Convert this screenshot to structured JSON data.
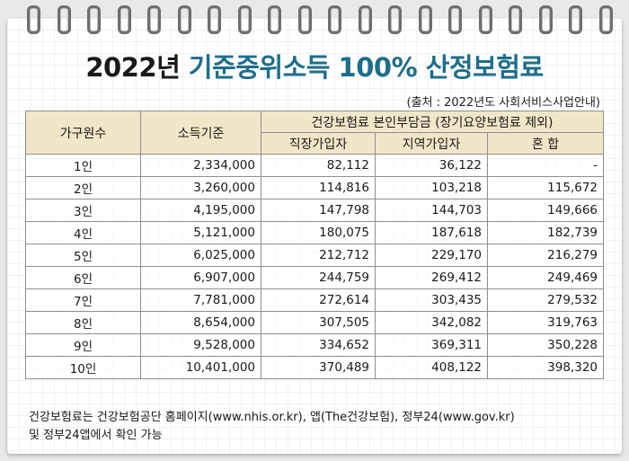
{
  "title": {
    "main": "2022년 ",
    "accent": "기준중위소득 100% 산정보험료"
  },
  "source": "(출처 : 2022년도 사회서비스사업안내)",
  "table": {
    "headers": {
      "household": "가구원수",
      "income": "소득기준",
      "premium_group": "건강보험료 본인부담금 (장기요양보험료 제외)",
      "workplace": "직장가입자",
      "regional": "지역가입자",
      "mixed": "혼 합"
    },
    "rows": [
      [
        "1인",
        "2,334,000",
        "82,112",
        "36,122",
        "-"
      ],
      [
        "2인",
        "3,260,000",
        "114,816",
        "103,218",
        "115,672"
      ],
      [
        "3인",
        "4,195,000",
        "147,798",
        "144,703",
        "149,666"
      ],
      [
        "4인",
        "5,121,000",
        "180,075",
        "187,618",
        "182,739"
      ],
      [
        "5인",
        "6,025,000",
        "212,712",
        "229,170",
        "216,279"
      ],
      [
        "6인",
        "6,907,000",
        "244,759",
        "269,412",
        "249,469"
      ],
      [
        "7인",
        "7,781,000",
        "272,614",
        "303,435",
        "279,532"
      ],
      [
        "8인",
        "8,654,000",
        "307,505",
        "342,082",
        "319,763"
      ],
      [
        "9인",
        "9,528,000",
        "334,652",
        "369,311",
        "350,228"
      ],
      [
        "10인",
        "10,401,000",
        "370,489",
        "408,122",
        "398,320"
      ]
    ]
  },
  "footnote": {
    "line1": "건강보험료는 건강보험공단 홈페이지(www.nhis.or.kr), 앱(The건강보험), 정부24(www.gov.kr)",
    "line2": "및 정부24앱에서 확인 가능"
  },
  "colors": {
    "header_bg": "#f2e6c8",
    "title_accent": "#1e6e8a",
    "ring": "#6e6e6e"
  }
}
